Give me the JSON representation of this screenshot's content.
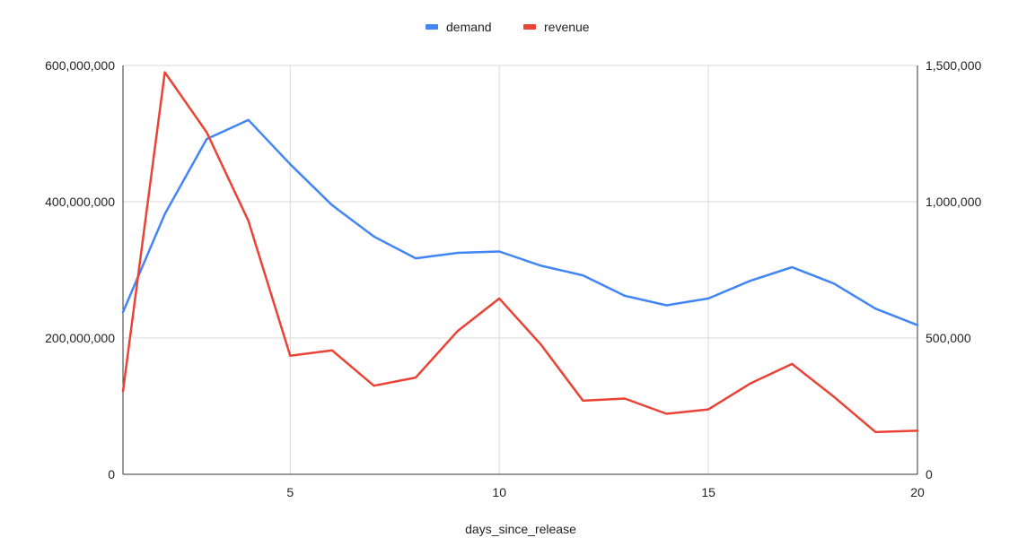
{
  "chart_data": {
    "type": "line",
    "xlabel": "days_since_release",
    "x": [
      1,
      2,
      3,
      4,
      5,
      6,
      7,
      8,
      9,
      10,
      11,
      12,
      13,
      14,
      15,
      16,
      17,
      18,
      19,
      20
    ],
    "xlim": [
      1,
      20
    ],
    "x_ticks": [
      5,
      10,
      15,
      20
    ],
    "x_tick_labels": [
      "5",
      "10",
      "15",
      "20"
    ],
    "left_axis": {
      "ylim": [
        0,
        600000000
      ],
      "ticks": [
        0,
        200000000,
        400000000,
        600000000
      ],
      "tick_labels": [
        "0",
        "200,000,000",
        "400,000,000",
        "600,000,000"
      ]
    },
    "right_axis": {
      "ylim": [
        0,
        1500000
      ],
      "ticks": [
        0,
        500000,
        1000000,
        1500000
      ],
      "tick_labels": [
        "0",
        "500,000",
        "1,000,000",
        "1,500,000"
      ]
    },
    "series": [
      {
        "name": "demand",
        "axis": "left",
        "color": "#4285f4",
        "values": [
          238000000,
          382000000,
          492000000,
          520000000,
          455000000,
          395000000,
          349000000,
          317000000,
          325000000,
          327000000,
          306000000,
          292000000,
          262000000,
          248000000,
          258000000,
          284000000,
          304000000,
          280000000,
          243000000,
          219000000
        ]
      },
      {
        "name": "revenue",
        "axis": "right",
        "color": "#ea4335",
        "values": [
          305000,
          1475000,
          1255000,
          930000,
          435000,
          455000,
          325000,
          355000,
          525000,
          645000,
          475000,
          270000,
          278000,
          222000,
          238000,
          333000,
          405000,
          285000,
          155000,
          160000
        ]
      }
    ],
    "legend_position": "top-center",
    "grid": true
  }
}
